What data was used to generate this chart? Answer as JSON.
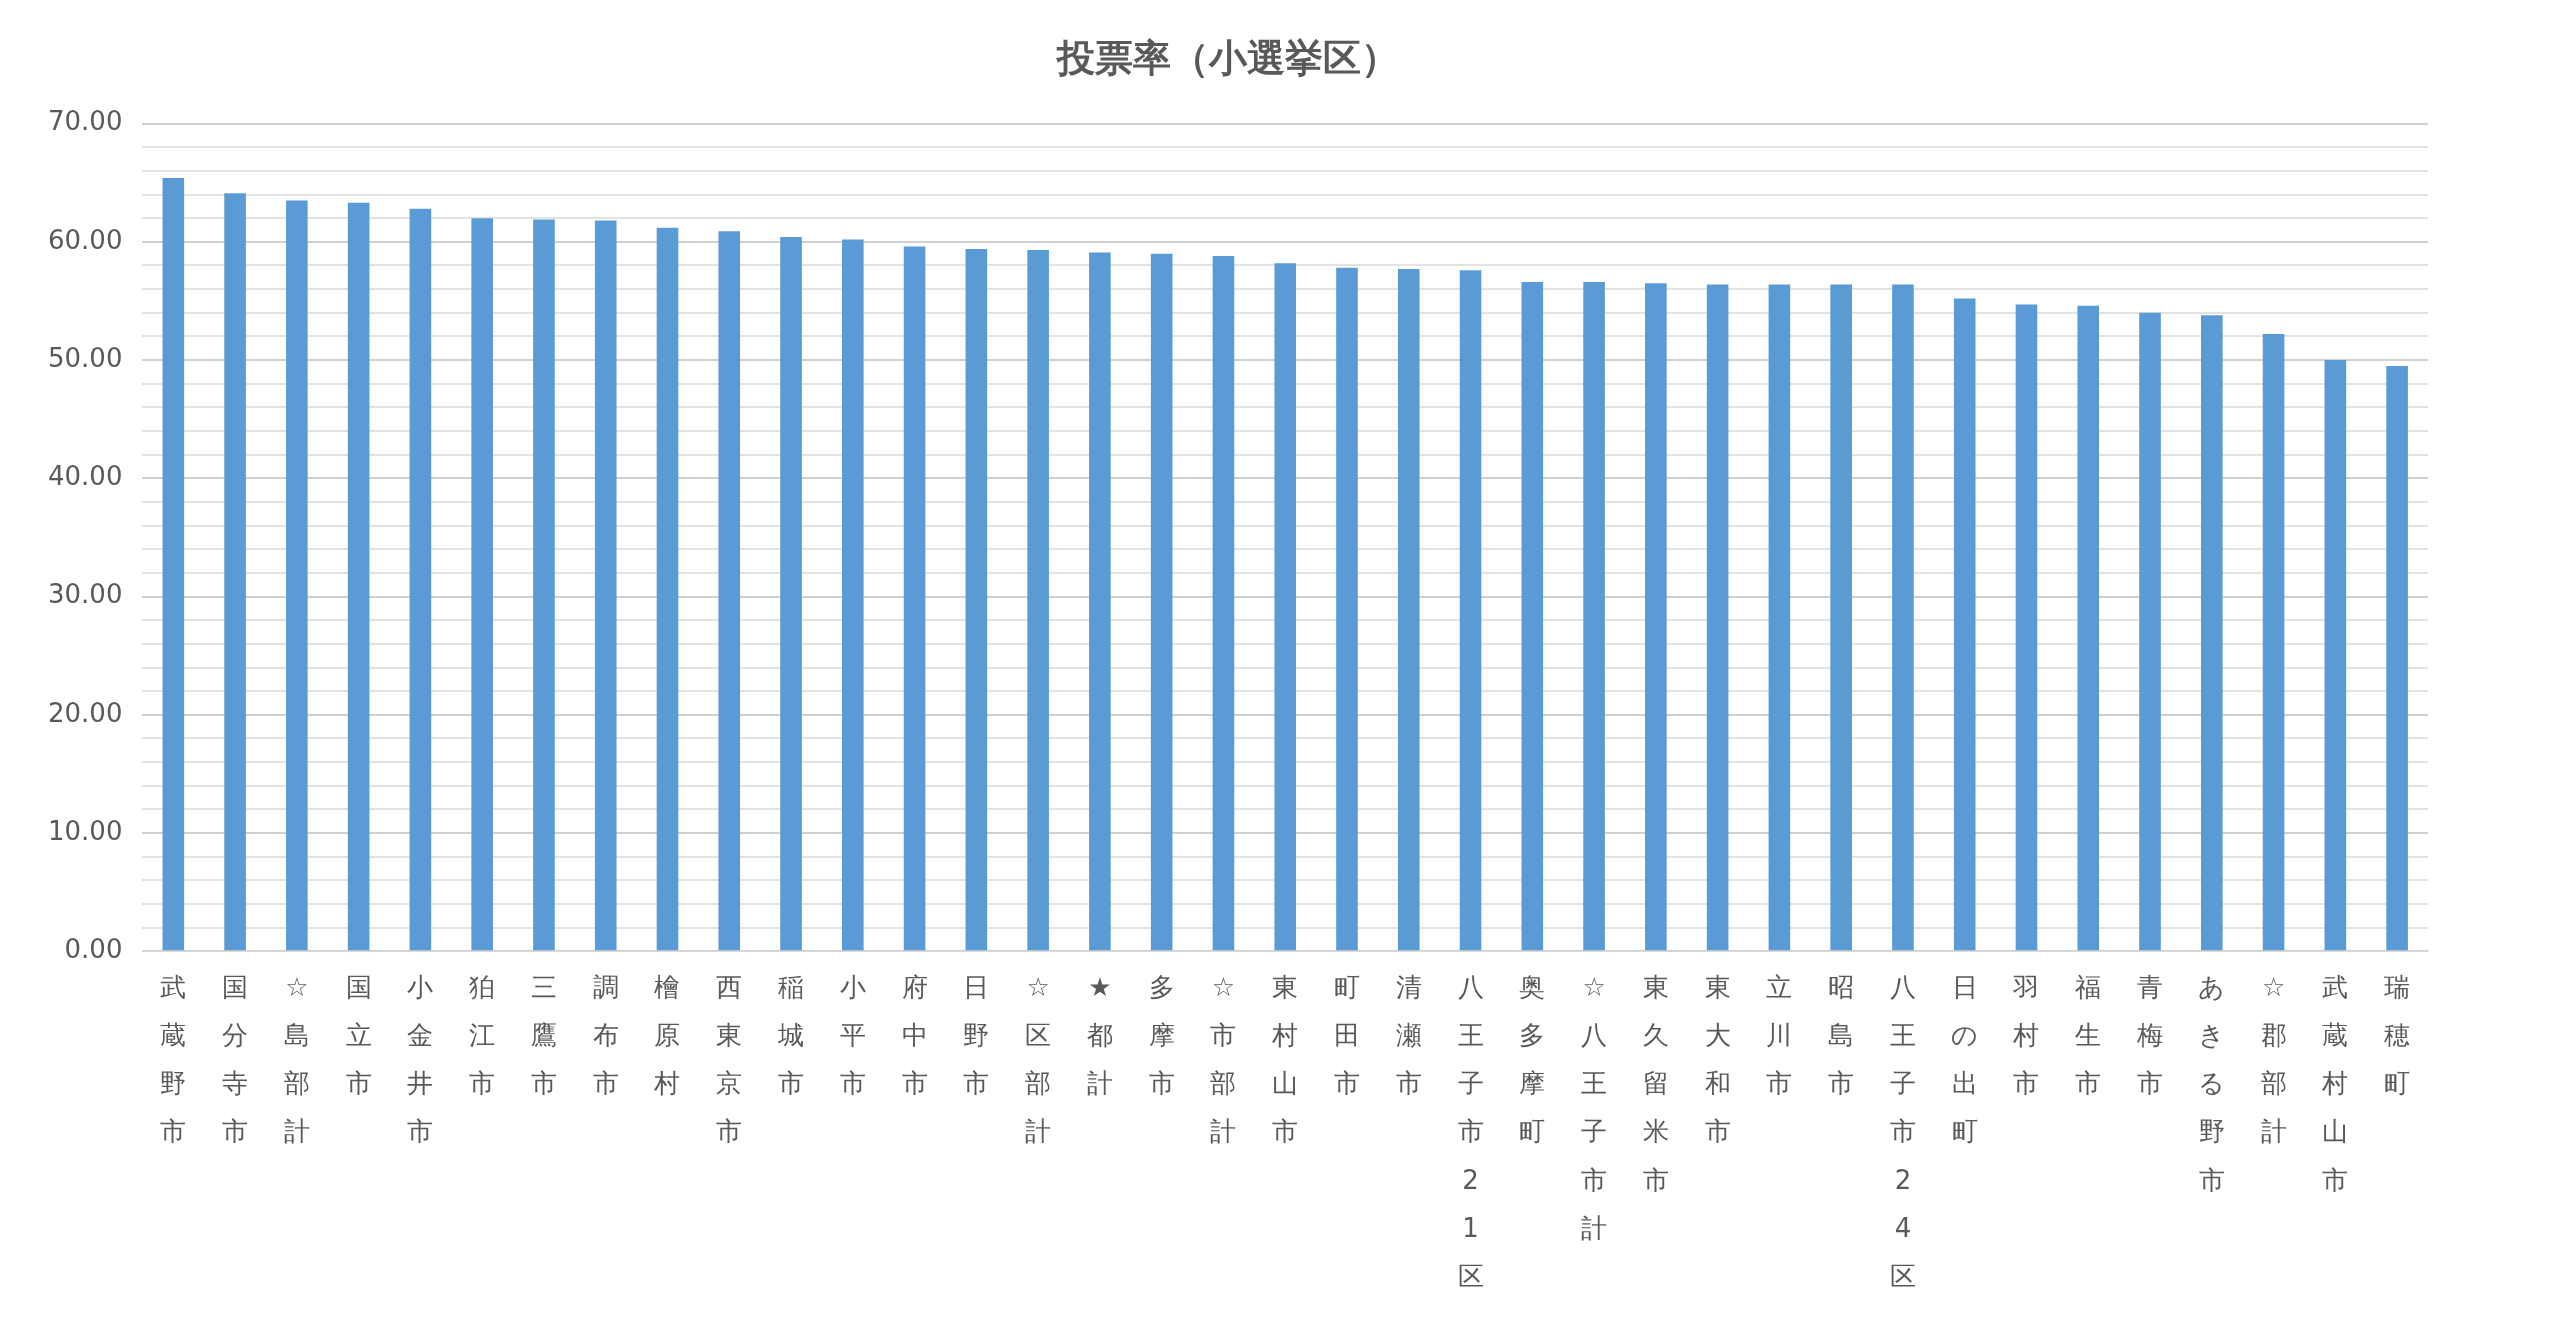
{
  "chart_data": {
    "type": "bar",
    "title": "投票率（小選挙区）",
    "categories": [
      "武蔵野市",
      "国分寺市",
      "☆島部計",
      "国立市",
      "小金井市",
      "狛江市",
      "三鷹市",
      "調布市",
      "檜原村",
      "西東京市",
      "稲城市",
      "小平市",
      "府中市",
      "日野市",
      "☆区部計",
      "★都計",
      "多摩市",
      "☆市部計",
      "東村山市",
      "町田市",
      "清瀬市",
      "八王子市21区",
      "奥多摩町",
      "☆八王子市計",
      "東久留米市",
      "東大和市",
      "立川市",
      "昭島市",
      "八王子市24区",
      "日の出町",
      "羽村市",
      "福生市",
      "青梅市",
      "あきる野市",
      "☆郡部計",
      "武蔵村山市",
      "瑞穂町"
    ],
    "values": [
      65.4,
      64.1,
      63.5,
      63.3,
      62.8,
      62.0,
      61.9,
      61.8,
      61.2,
      60.9,
      60.4,
      60.2,
      59.6,
      59.4,
      59.3,
      59.1,
      59.0,
      58.8,
      58.2,
      57.8,
      57.7,
      57.6,
      56.6,
      56.6,
      56.5,
      56.4,
      56.4,
      56.4,
      56.4,
      55.2,
      54.7,
      54.6,
      54.0,
      53.8,
      52.2,
      50.0,
      49.5
    ],
    "color": "#5b9bd5",
    "ylim": [
      0,
      70
    ],
    "yticks": [
      {
        "value": 0,
        "label": "0.00"
      },
      {
        "value": 2,
        "label": null
      },
      {
        "value": 4,
        "label": null
      },
      {
        "value": 6,
        "label": null
      },
      {
        "value": 8,
        "label": null
      },
      {
        "value": 10,
        "label": "10.00"
      },
      {
        "value": 12,
        "label": null
      },
      {
        "value": 14,
        "label": null
      },
      {
        "value": 16,
        "label": null
      },
      {
        "value": 18,
        "label": null
      },
      {
        "value": 20,
        "label": "20.00"
      },
      {
        "value": 22,
        "label": null
      },
      {
        "value": 24,
        "label": null
      },
      {
        "value": 26,
        "label": null
      },
      {
        "value": 28,
        "label": null
      },
      {
        "value": 30,
        "label": "30.00"
      },
      {
        "value": 32,
        "label": null
      },
      {
        "value": 34,
        "label": null
      },
      {
        "value": 36,
        "label": null
      },
      {
        "value": 38,
        "label": null
      },
      {
        "value": 40,
        "label": "40.00"
      },
      {
        "value": 42,
        "label": null
      },
      {
        "value": 44,
        "label": null
      },
      {
        "value": 46,
        "label": null
      },
      {
        "value": 48,
        "label": null
      },
      {
        "value": 50,
        "label": "50.00"
      },
      {
        "value": 52,
        "label": null
      },
      {
        "value": 54,
        "label": null
      },
      {
        "value": 56,
        "label": null
      },
      {
        "value": 58,
        "label": null
      },
      {
        "value": 60,
        "label": "60.00"
      },
      {
        "value": 62,
        "label": null
      },
      {
        "value": 64,
        "label": null
      },
      {
        "value": 66,
        "label": null
      },
      {
        "value": 68,
        "label": null
      },
      {
        "value": 70,
        "label": "70.00"
      }
    ],
    "grid": "y"
  }
}
